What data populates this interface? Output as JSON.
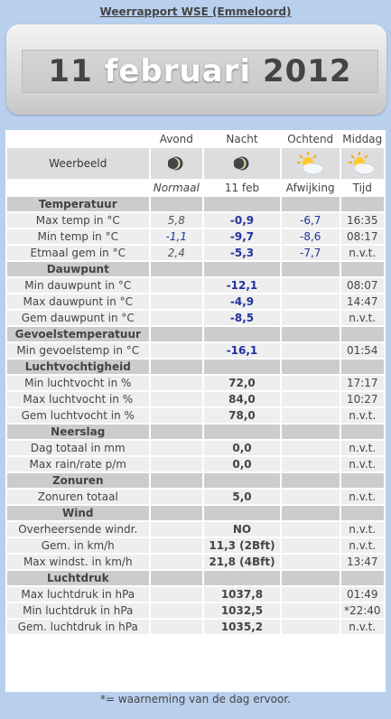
{
  "page_title": "Weerrapport WSE (Emmeloord)",
  "date": {
    "day": "11",
    "month": "februari",
    "year": "2012"
  },
  "columns": {
    "avond": "Avond",
    "nacht": "Nacht",
    "ochtend": "Ochtend",
    "middag": "Middag"
  },
  "weerbeeld_label": "Weerbeeld",
  "weerbeeld_icons": [
    "moon-icon",
    "moon-icon",
    "partly-sunny-icon",
    "partly-sunny-icon"
  ],
  "subheaders": {
    "normaal": "Normaal",
    "datum": "11 feb",
    "afwijking": "Afwijking",
    "tijd": "Tijd"
  },
  "sections": [
    {
      "title": "Temperatuur",
      "rows": [
        {
          "label": "Max temp in °C",
          "normaal": "5,8",
          "value": "-0,9",
          "afwijking": "-6,7",
          "tijd": "16:35"
        },
        {
          "label": "Min temp in °C",
          "normaal": "-1,1",
          "value": "-9,7",
          "afwijking": "-8,6",
          "tijd": "08:17"
        },
        {
          "label": "Etmaal gem in °C",
          "normaal": "2,4",
          "value": "-5,3",
          "afwijking": "-7,7",
          "tijd": "n.v.t."
        }
      ]
    },
    {
      "title": "Dauwpunt",
      "rows": [
        {
          "label": "Min dauwpunt in °C",
          "normaal": "",
          "value": "-12,1",
          "afwijking": "",
          "tijd": "08:07"
        },
        {
          "label": "Max dauwpunt in °C",
          "normaal": "",
          "value": "-4,9",
          "afwijking": "",
          "tijd": "14:47"
        },
        {
          "label": "Gem dauwpunt in °C",
          "normaal": "",
          "value": "-8,5",
          "afwijking": "",
          "tijd": "n.v.t."
        }
      ]
    },
    {
      "title": "Gevoelstemperatuur",
      "rows": [
        {
          "label": "Min gevoelstemp in °C",
          "normaal": "",
          "value": "-16,1",
          "afwijking": "",
          "tijd": "01:54"
        }
      ]
    },
    {
      "title": "Luchtvochtigheid",
      "rows": [
        {
          "label": "Min luchtvocht in %",
          "normaal": "",
          "value": "72,0",
          "afwijking": "",
          "tijd": "17:17"
        },
        {
          "label": "Max luchtvocht in %",
          "normaal": "",
          "value": "84,0",
          "afwijking": "",
          "tijd": "10:27"
        },
        {
          "label": "Gem luchtvocht in %",
          "normaal": "",
          "value": "78,0",
          "afwijking": "",
          "tijd": "n.v.t."
        }
      ]
    },
    {
      "title": "Neerslag",
      "rows": [
        {
          "label": "Dag totaal in mm",
          "normaal": "",
          "value": "0,0",
          "afwijking": "",
          "tijd": "n.v.t."
        },
        {
          "label": "Max rain/rate p/m",
          "normaal": "",
          "value": "0,0",
          "afwijking": "",
          "tijd": "n.v.t."
        }
      ]
    },
    {
      "title": "Zonuren",
      "rows": [
        {
          "label": "Zonuren totaal",
          "normaal": "",
          "value": "5,0",
          "afwijking": "",
          "tijd": "n.v.t."
        }
      ]
    },
    {
      "title": "Wind",
      "rows": [
        {
          "label": "Overheersende windr.",
          "normaal": "",
          "value": "NO",
          "afwijking": "",
          "tijd": "n.v.t."
        },
        {
          "label": "Gem. in km/h",
          "normaal": "",
          "value": "11,3 (2Bft)",
          "afwijking": "",
          "tijd": "n.v.t."
        },
        {
          "label": "Max windst. in km/h",
          "normaal": "",
          "value": "21,8 (4Bft)",
          "afwijking": "",
          "tijd": "13:47"
        }
      ]
    },
    {
      "title": "Luchtdruk",
      "rows": [
        {
          "label": "Max luchtdruk in hPa",
          "normaal": "",
          "value": "1037,8",
          "afwijking": "",
          "tijd": "01:49"
        },
        {
          "label": "Min luchtdruk in hPa",
          "normaal": "",
          "value": "1032,5",
          "afwijking": "",
          "tijd": "*22:40"
        },
        {
          "label": "Gem. luchtdruk in hPa",
          "normaal": "",
          "value": "1035,2",
          "afwijking": "",
          "tijd": "n.v.t."
        }
      ]
    }
  ],
  "footnote": "*= waarneming van de dag ervoor."
}
